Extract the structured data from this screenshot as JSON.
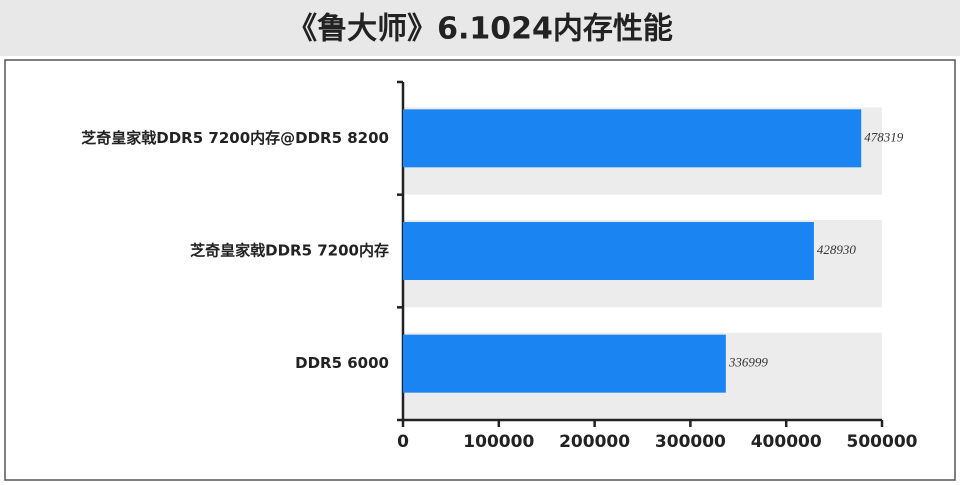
{
  "chart_data": {
    "type": "hbar",
    "title": "《鲁大师》6.1024内存性能",
    "categories": [
      "芝奇皇家戟DDR5 7200内存@DDR5 8200",
      "芝奇皇家戟DDR5 7200内存",
      "DDR5 6000"
    ],
    "values": [
      478319,
      428930,
      336999
    ],
    "color": "#1a84f2",
    "xlim": [
      0,
      500000
    ],
    "xticks": [
      0,
      100000,
      200000,
      300000,
      400000,
      500000
    ]
  }
}
